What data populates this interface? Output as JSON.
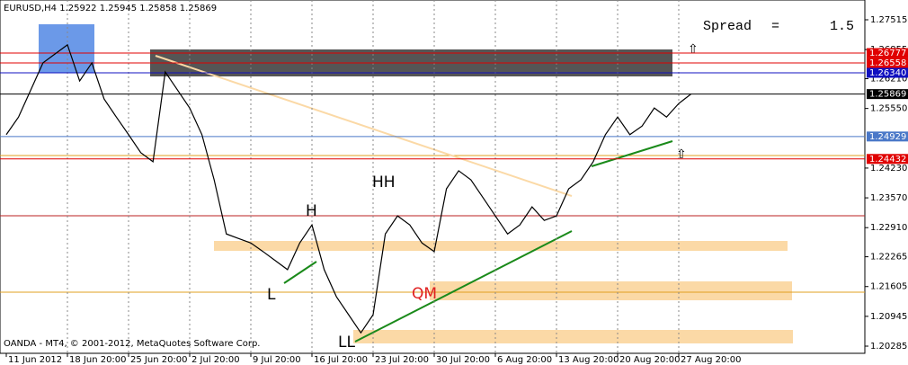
{
  "chart_data": {
    "type": "line",
    "title": "EURUSD,H4  1.25922 1.25945 1.25858 1.25869",
    "footer": "OANDA - MT4, © 2001-2012, MetaQuotes Software Corp.",
    "spread": {
      "label": "Spread",
      "sign": "=",
      "value": 1.5
    },
    "annotations": [
      "HH",
      "H",
      "L",
      "LL",
      "QM"
    ],
    "categories": [
      "11 Jun 2012",
      null,
      null,
      null,
      null,
      "18 Jun 20:00",
      null,
      null,
      null,
      null,
      "25 Jun 20:00",
      null,
      null,
      null,
      null,
      "2 Jul 20:00",
      null,
      null,
      null,
      null,
      "9 Jul 20:00",
      null,
      null,
      null,
      null,
      "16 Jul 20:00",
      null,
      null,
      null,
      null,
      "23 Jul 20:00",
      null,
      null,
      null,
      null,
      "30 Jul 20:00",
      null,
      null,
      null,
      null,
      "6 Aug 20:00",
      null,
      null,
      null,
      null,
      "13 Aug 20:00",
      null,
      null,
      null,
      null,
      "20 Aug 20:00",
      null,
      null,
      null,
      null,
      "27 Aug 20:00",
      null
    ],
    "series": [
      {
        "name": "EURUSD",
        "color": "#000000",
        "values": [
          1.2497,
          1.2536,
          1.2596,
          1.2656,
          1.2676,
          1.2696,
          1.2616,
          1.2656,
          1.2576,
          1.2536,
          1.2497,
          1.2457,
          1.2437,
          1.2636,
          1.2596,
          1.2556,
          1.2497,
          1.2397,
          1.2277,
          1.2267,
          1.2257,
          1.2238,
          1.2218,
          1.2198,
          1.2257,
          1.2297,
          1.2198,
          1.2138,
          1.2098,
          1.2058,
          1.2098,
          1.2277,
          1.2317,
          1.2297,
          1.2257,
          1.2238,
          1.2377,
          1.2417,
          1.2397,
          1.2357,
          1.2317,
          1.2277,
          1.2297,
          1.2337,
          1.2307,
          1.2317,
          1.2377,
          1.2397,
          1.2437,
          1.2497,
          1.2536,
          1.2497,
          1.2516,
          1.2556,
          1.2536,
          1.2566,
          1.2587
        ]
      }
    ],
    "ylim": [
      1.20126,
      1.27953
    ],
    "yticks": [
      1.27515,
      {
        "value": 1.26855,
        "label": "1.26855"
      },
      {
        "value": 1.2621,
        "label": "1.26210"
      },
      {
        "value": 1.2555,
        "label": "1.25550"
      },
      {
        "value": 1.2423,
        "label": "1.24230"
      },
      {
        "value": 1.2357,
        "label": "1.23570"
      },
      {
        "value": 1.2291,
        "label": "1.22910"
      },
      1.22265,
      1.21605,
      1.20945,
      1.20285
    ],
    "levels": [
      {
        "value": 1.26777,
        "label": "1.26777",
        "color": "#e00000"
      },
      {
        "value": 1.26558,
        "label": "1.26558",
        "color": "#e00000"
      },
      {
        "value": 1.2634,
        "label": "1.26340",
        "color": "#1010c0"
      },
      {
        "value": 1.25869,
        "label": "1.25869",
        "color": "#000000"
      },
      {
        "value": 1.24929,
        "label": "1.24929",
        "color": "#4a78c8"
      },
      {
        "value": 1.24432,
        "label": "1.24432",
        "color": "#e00000"
      }
    ],
    "grid": true
  }
}
